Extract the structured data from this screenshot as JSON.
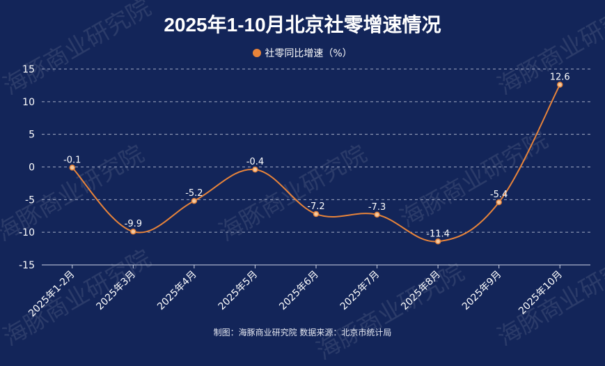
{
  "chart_data": {
    "type": "line",
    "title": "2025年1-10月北京社零增速情况",
    "categories": [
      "2025年1-2月",
      "2025年3月",
      "2025年4月",
      "2025年5月",
      "2025年6月",
      "2025年7月",
      "2025年8月",
      "2025年9月",
      "2025年10月"
    ],
    "series": [
      {
        "name": "社零同比增速（%）",
        "values": [
          -0.1,
          -9.9,
          -5.2,
          -0.4,
          -7.2,
          -7.3,
          -11.4,
          -5.4,
          12.6
        ],
        "color": "#e8843a"
      }
    ],
    "ylim": [
      -15,
      15
    ],
    "yticks": [
      -15,
      -10,
      -5,
      0,
      5,
      10,
      15
    ],
    "grid": true,
    "legend_position": "top"
  },
  "footer": "制图：海豚商业研究院  数据来源：北京市统计局",
  "watermark": "海豚商业研究院",
  "colors": {
    "background": "#132559",
    "line": "#e8843a",
    "grid": "#c7cde0"
  }
}
